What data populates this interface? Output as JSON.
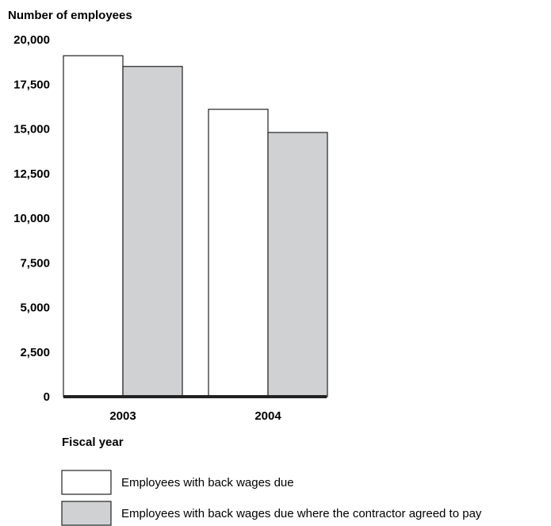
{
  "chart_data": {
    "type": "bar",
    "ylabel": "Number of employees",
    "xlabel": "Fiscal year",
    "categories": [
      "2003",
      "2004"
    ],
    "series": [
      {
        "name": "Employees with back wages due",
        "values": [
          19100,
          16100
        ],
        "color": "#ffffff"
      },
      {
        "name": "Employees with back wages due where the contractor agreed to pay",
        "values": [
          18500,
          14800
        ],
        "color": "#d0d1d3"
      }
    ],
    "ylim": [
      0,
      20000
    ],
    "yticks": [
      "0",
      "2,500",
      "5,000",
      "7,500",
      "10,000",
      "12,500",
      "15,000",
      "17,500",
      "20,000"
    ],
    "ytick_values": [
      0,
      2500,
      5000,
      7500,
      10000,
      12500,
      15000,
      17500,
      20000
    ],
    "grid": false,
    "legend_position": "bottom"
  }
}
